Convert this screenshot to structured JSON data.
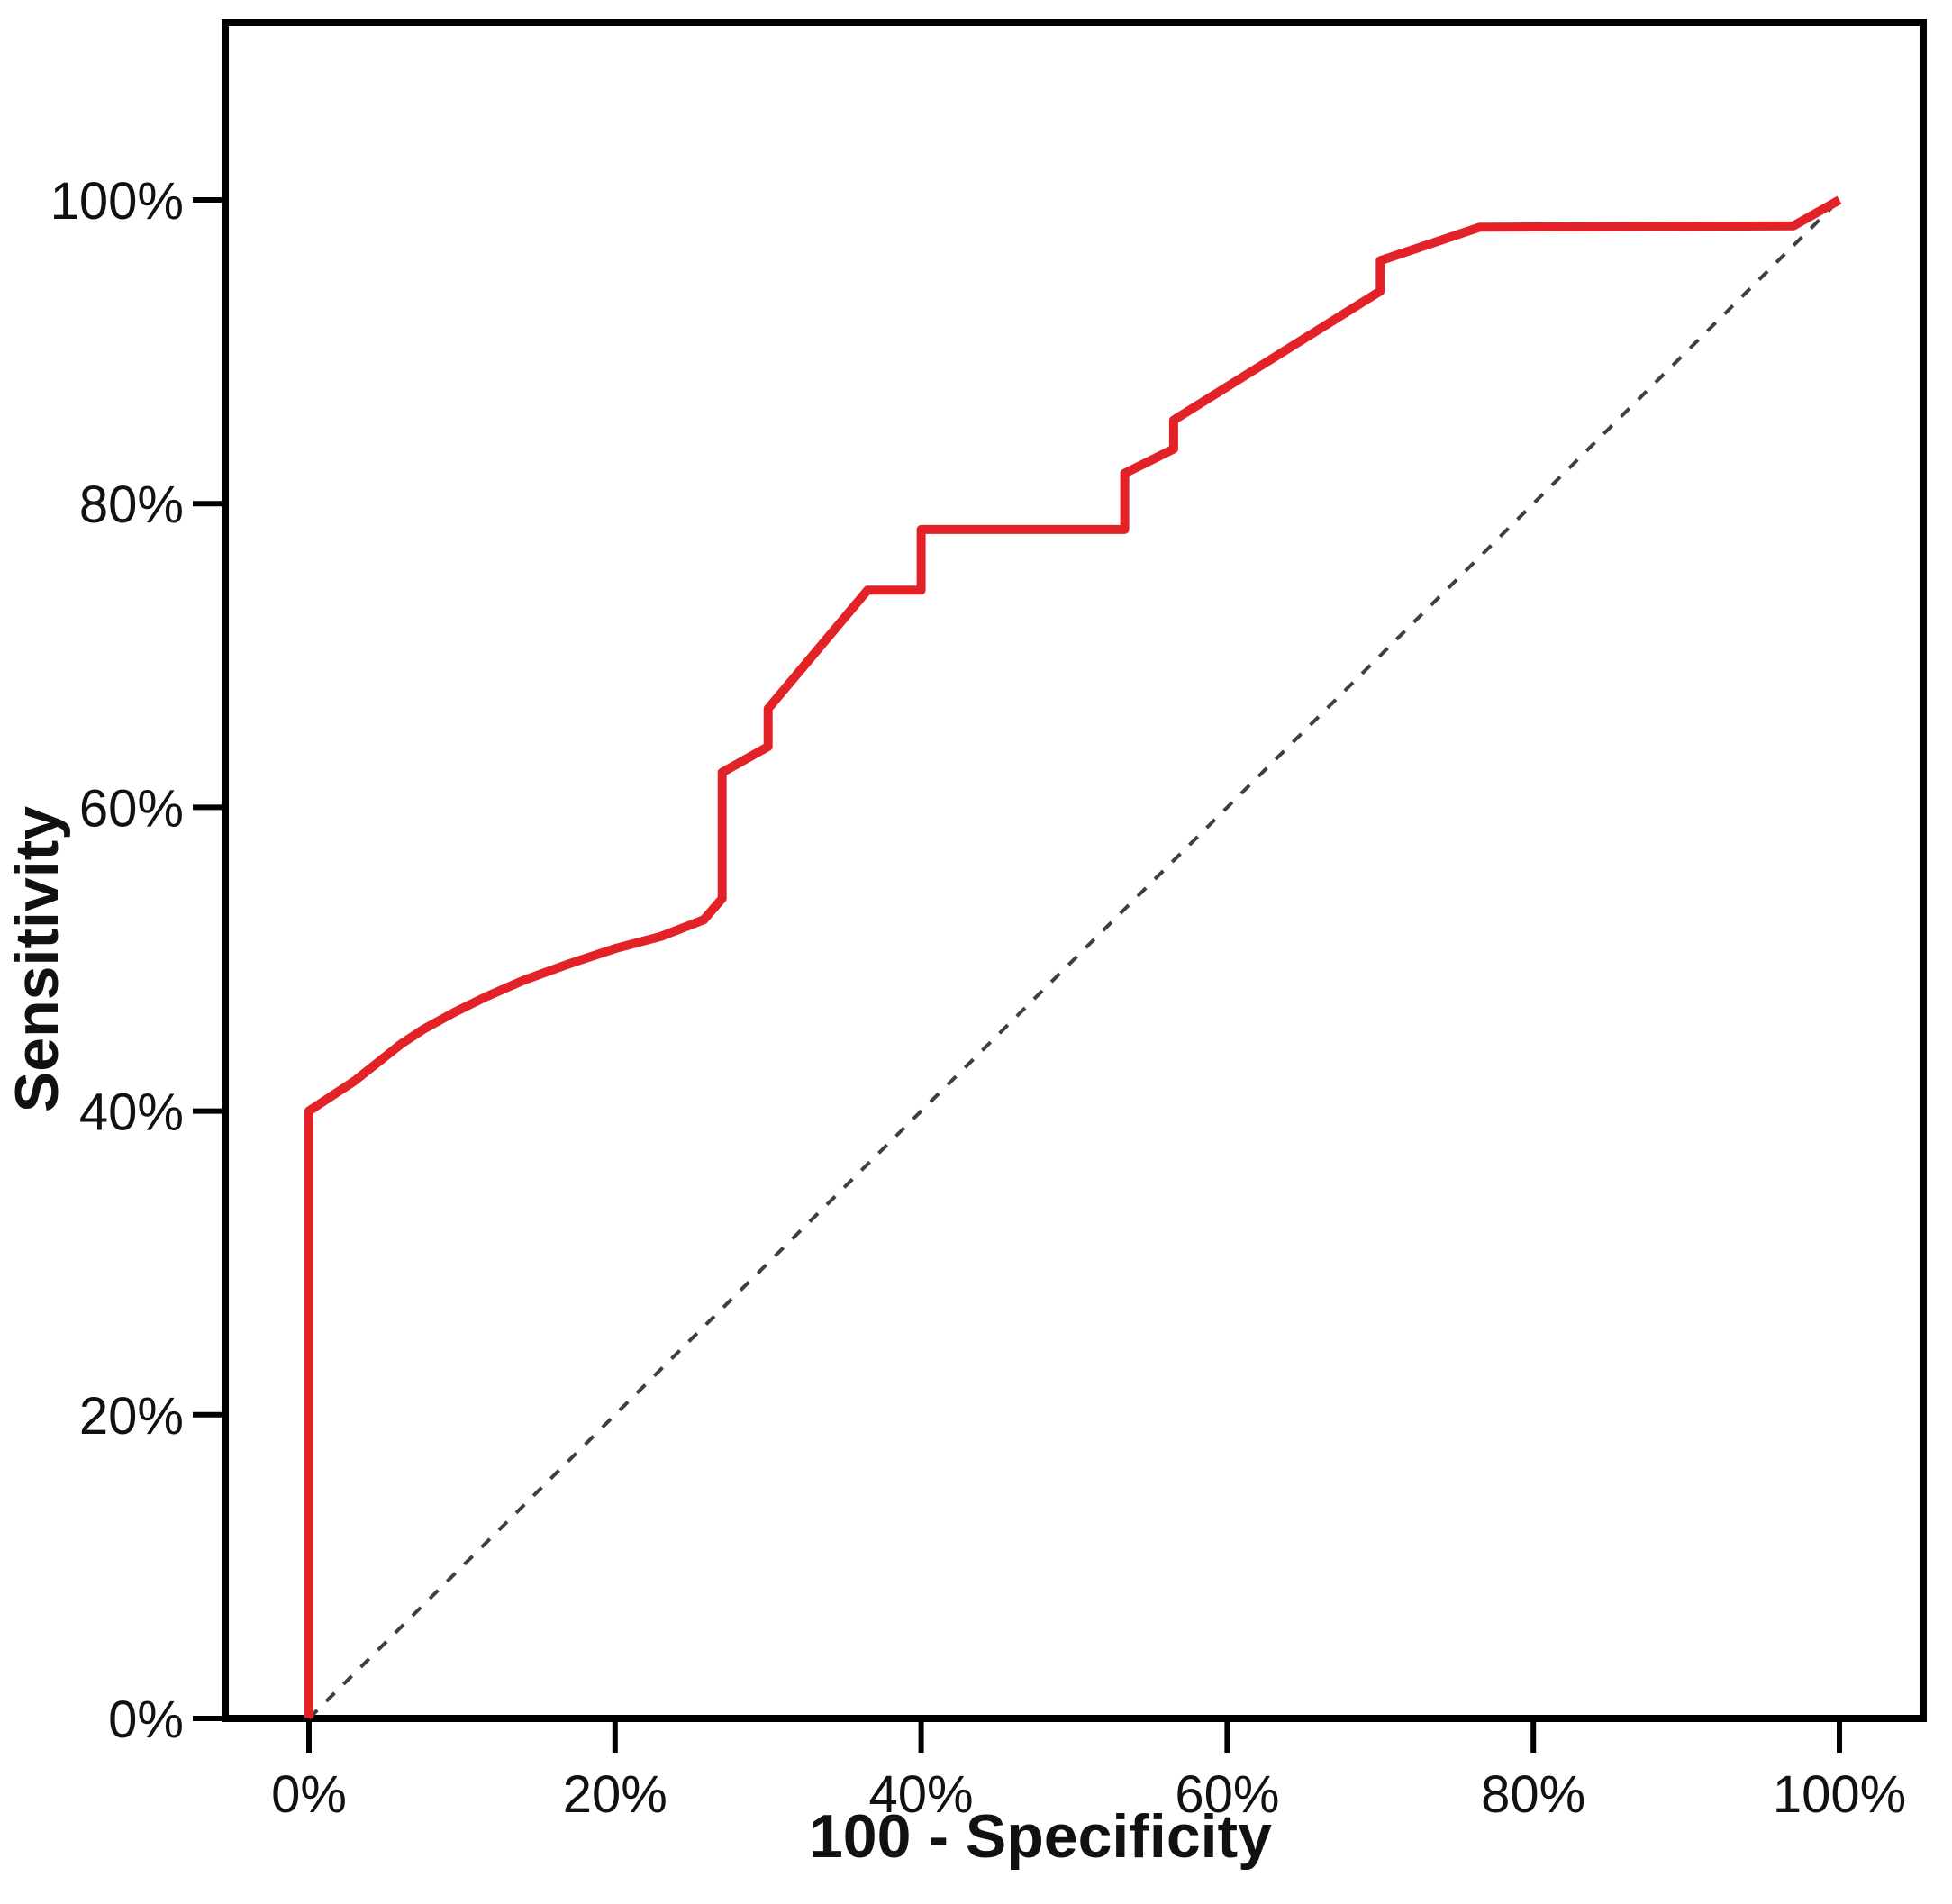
{
  "chart_data": {
    "type": "line",
    "title": "",
    "xlabel": "100 - Specificity",
    "ylabel": "Sensitivity",
    "xlim": [
      0,
      100
    ],
    "ylim": [
      0,
      100
    ],
    "grid": false,
    "legend_position": "none",
    "x_ticks": [
      {
        "value": 0,
        "label": "0%"
      },
      {
        "value": 20,
        "label": "20%"
      },
      {
        "value": 40,
        "label": "40%"
      },
      {
        "value": 60,
        "label": "60%"
      },
      {
        "value": 80,
        "label": "80%"
      },
      {
        "value": 100,
        "label": "100%"
      }
    ],
    "y_ticks": [
      {
        "value": 0,
        "label": "0%"
      },
      {
        "value": 20,
        "label": "20%"
      },
      {
        "value": 40,
        "label": "40%"
      },
      {
        "value": 60,
        "label": "60%"
      },
      {
        "value": 80,
        "label": "80%"
      },
      {
        "value": 100,
        "label": "100%"
      }
    ],
    "colors": {
      "roc_curve": "#e32228",
      "reference_line": "#3f3f3f",
      "frame": "#000000",
      "background": "#ffffff",
      "text": "#111111"
    },
    "series": [
      {
        "name": "ROC curve",
        "style": "solid",
        "color_key": "roc_curve",
        "points": [
          [
            0,
            0
          ],
          [
            0,
            40
          ],
          [
            1.5,
            41
          ],
          [
            3,
            42
          ],
          [
            4.5,
            43.2
          ],
          [
            6,
            44.4
          ],
          [
            7.5,
            45.4
          ],
          [
            9.5,
            46.5
          ],
          [
            11.5,
            47.5
          ],
          [
            14,
            48.6
          ],
          [
            17,
            49.7
          ],
          [
            20,
            50.7
          ],
          [
            23,
            51.5
          ],
          [
            25.8,
            52.6
          ],
          [
            27,
            54
          ],
          [
            27,
            62.3
          ],
          [
            30,
            64
          ],
          [
            30,
            66.5
          ],
          [
            36.5,
            74.3
          ],
          [
            40,
            74.3
          ],
          [
            40,
            78.3
          ],
          [
            53.3,
            78.3
          ],
          [
            53.3,
            82
          ],
          [
            56.5,
            83.6
          ],
          [
            56.5,
            85.5
          ],
          [
            70,
            94
          ],
          [
            70,
            96
          ],
          [
            76.5,
            98.2
          ],
          [
            97,
            98.3
          ],
          [
            100,
            100
          ]
        ]
      },
      {
        "name": "Reference diagonal",
        "style": "dashed",
        "color_key": "reference_line",
        "points": [
          [
            0,
            0
          ],
          [
            100,
            100
          ]
        ]
      }
    ]
  }
}
